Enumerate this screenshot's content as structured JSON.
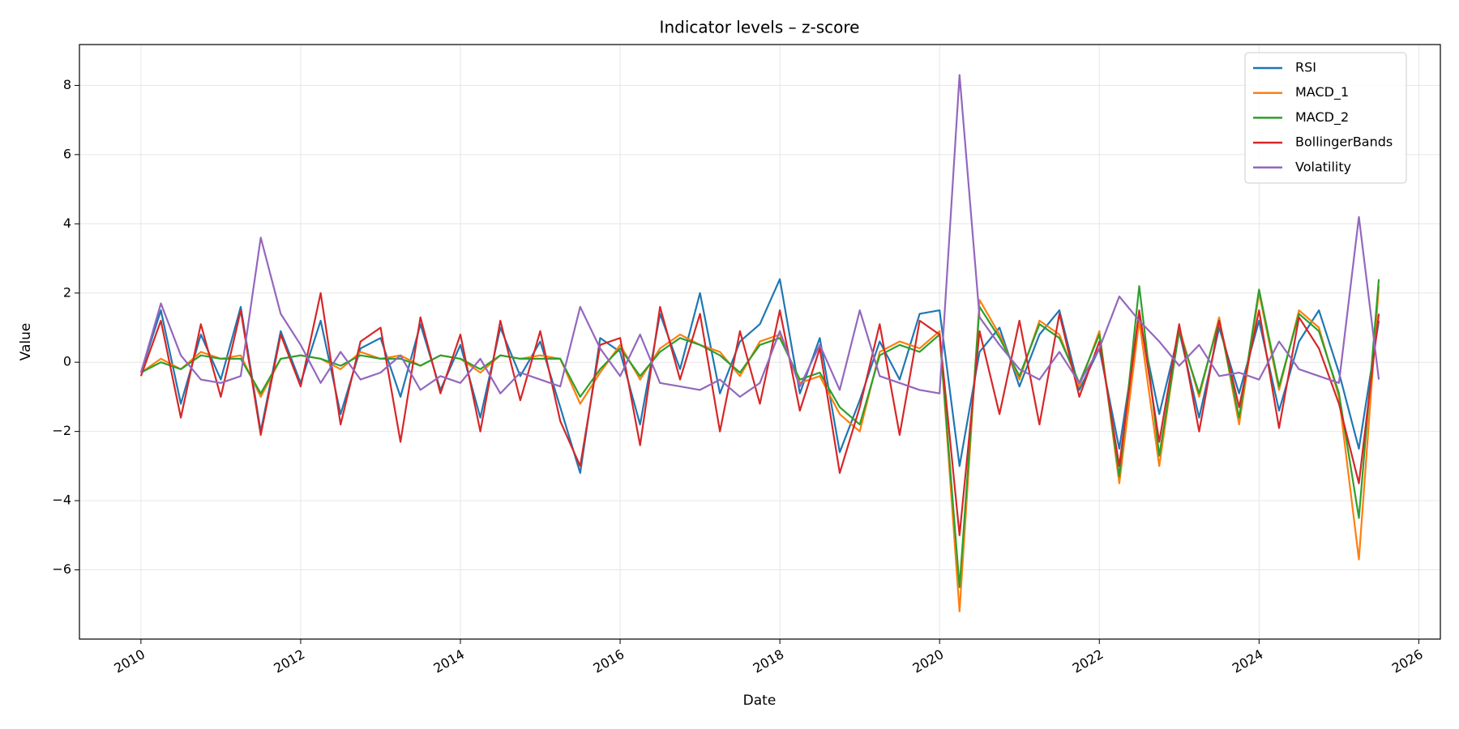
{
  "chart_data": {
    "type": "line",
    "title": "Indicator levels – z-score",
    "xlabel": "Date",
    "ylabel": "Value",
    "x": [
      2010,
      2010.25,
      2010.5,
      2010.75,
      2011,
      2011.25,
      2011.5,
      2011.75,
      2012,
      2012.25,
      2012.5,
      2012.75,
      2013,
      2013.25,
      2013.5,
      2013.75,
      2014,
      2014.25,
      2014.5,
      2014.75,
      2015,
      2015.25,
      2015.5,
      2015.75,
      2016,
      2016.25,
      2016.5,
      2016.75,
      2017,
      2017.25,
      2017.5,
      2017.75,
      2018,
      2018.25,
      2018.5,
      2018.75,
      2019,
      2019.25,
      2019.5,
      2019.75,
      2020,
      2020.25,
      2020.5,
      2020.75,
      2021,
      2021.25,
      2021.5,
      2021.75,
      2022,
      2022.25,
      2022.5,
      2022.75,
      2023,
      2023.25,
      2023.5,
      2023.75,
      2024,
      2024.25,
      2024.5,
      2024.75,
      2025,
      2025.25,
      2025.5
    ],
    "series": [
      {
        "name": "RSI",
        "color": "#1f77b4",
        "values": [
          -0.3,
          1.5,
          -1.2,
          0.8,
          -0.5,
          1.6,
          -2.0,
          0.9,
          -0.6,
          1.2,
          -1.5,
          0.4,
          0.7,
          -1.0,
          1.1,
          -0.8,
          0.5,
          -1.6,
          1.0,
          -0.4,
          0.6,
          -1.3,
          -3.2,
          0.7,
          0.3,
          -1.8,
          1.4,
          -0.2,
          2.0,
          -0.9,
          0.6,
          1.1,
          2.4,
          -0.9,
          0.7,
          -2.6,
          -1.1,
          0.6,
          -0.5,
          1.4,
          1.5,
          -3.0,
          0.3,
          1.0,
          -0.7,
          0.8,
          1.5,
          -0.8,
          0.4,
          -2.5,
          1.3,
          -1.5,
          0.9,
          -1.6,
          1.0,
          -0.9,
          1.2,
          -1.4,
          0.6,
          1.5,
          -0.3,
          -2.5,
          1.2
        ]
      },
      {
        "name": "MACD_1",
        "color": "#ff7f0e",
        "values": [
          -0.3,
          0.1,
          -0.2,
          0.3,
          0.1,
          0.2,
          -1.0,
          0.1,
          0.2,
          0.1,
          -0.2,
          0.3,
          0.1,
          0.2,
          -0.1,
          0.2,
          0.1,
          -0.3,
          0.2,
          0.1,
          0.2,
          0.1,
          -1.2,
          -0.3,
          0.5,
          -0.5,
          0.4,
          0.8,
          0.5,
          0.3,
          -0.4,
          0.6,
          0.8,
          -0.6,
          -0.4,
          -1.5,
          -2.0,
          0.3,
          0.6,
          0.4,
          0.9,
          -7.2,
          1.8,
          0.8,
          -0.5,
          1.2,
          0.8,
          -0.7,
          0.9,
          -3.5,
          1.2,
          -3.0,
          1.0,
          -1.0,
          1.3,
          -1.8,
          2.0,
          -0.8,
          1.5,
          1.0,
          -1.0,
          -5.7,
          2.2
        ]
      },
      {
        "name": "MACD_2",
        "color": "#2ca02c",
        "values": [
          -0.3,
          0.0,
          -0.2,
          0.2,
          0.1,
          0.1,
          -0.9,
          0.1,
          0.2,
          0.1,
          -0.1,
          0.2,
          0.1,
          0.1,
          -0.1,
          0.2,
          0.1,
          -0.2,
          0.2,
          0.1,
          0.1,
          0.1,
          -1.0,
          -0.2,
          0.4,
          -0.4,
          0.3,
          0.7,
          0.5,
          0.2,
          -0.3,
          0.5,
          0.7,
          -0.5,
          -0.3,
          -1.3,
          -1.8,
          0.2,
          0.5,
          0.3,
          0.8,
          -6.5,
          1.6,
          0.7,
          -0.4,
          1.1,
          0.7,
          -0.6,
          0.8,
          -3.3,
          2.2,
          -2.7,
          0.9,
          -0.9,
          1.2,
          -1.6,
          2.1,
          -0.7,
          1.4,
          0.9,
          -0.9,
          -4.5,
          2.4
        ]
      },
      {
        "name": "BollingerBands",
        "color": "#d62728",
        "values": [
          -0.4,
          1.2,
          -1.6,
          1.1,
          -1.0,
          1.5,
          -2.1,
          0.8,
          -0.7,
          2.0,
          -1.8,
          0.6,
          1.0,
          -2.3,
          1.3,
          -0.9,
          0.8,
          -2.0,
          1.2,
          -1.1,
          0.9,
          -1.7,
          -3.0,
          0.5,
          0.7,
          -2.4,
          1.6,
          -0.5,
          1.4,
          -2.0,
          0.9,
          -1.2,
          1.5,
          -1.4,
          0.4,
          -3.2,
          -1.3,
          1.1,
          -2.1,
          1.2,
          0.8,
          -5.0,
          0.9,
          -1.5,
          1.2,
          -1.8,
          1.4,
          -1.0,
          0.6,
          -3.0,
          1.5,
          -2.3,
          1.1,
          -2.0,
          1.2,
          -1.3,
          1.5,
          -1.9,
          1.3,
          0.4,
          -1.2,
          -3.5,
          1.4
        ]
      },
      {
        "name": "Volatility",
        "color": "#9467bd",
        "values": [
          -0.3,
          1.7,
          0.2,
          -0.5,
          -0.6,
          -0.4,
          3.6,
          1.4,
          0.5,
          -0.6,
          0.3,
          -0.5,
          -0.3,
          0.2,
          -0.8,
          -0.4,
          -0.6,
          0.1,
          -0.9,
          -0.3,
          -0.5,
          -0.7,
          1.6,
          0.4,
          -0.4,
          0.8,
          -0.6,
          -0.7,
          -0.8,
          -0.5,
          -1.0,
          -0.6,
          0.9,
          -0.7,
          0.5,
          -0.8,
          1.5,
          -0.4,
          -0.6,
          -0.8,
          -0.9,
          8.3,
          1.3,
          0.5,
          -0.2,
          -0.5,
          0.3,
          -0.6,
          0.4,
          1.9,
          1.2,
          0.6,
          -0.1,
          0.5,
          -0.4,
          -0.3,
          -0.5,
          0.6,
          -0.2,
          -0.4,
          -0.6,
          4.2,
          -0.5
        ]
      }
    ],
    "xlim": [
      2009.23,
      2026.27
    ],
    "xticks": [
      2010,
      2012,
      2014,
      2016,
      2018,
      2020,
      2022,
      2024,
      2026
    ],
    "ylim": [
      -8,
      9.18
    ],
    "yticks": [
      -6,
      -4,
      -2,
      0,
      2,
      4,
      6,
      8
    ],
    "grid": true,
    "legend": "upper right"
  }
}
